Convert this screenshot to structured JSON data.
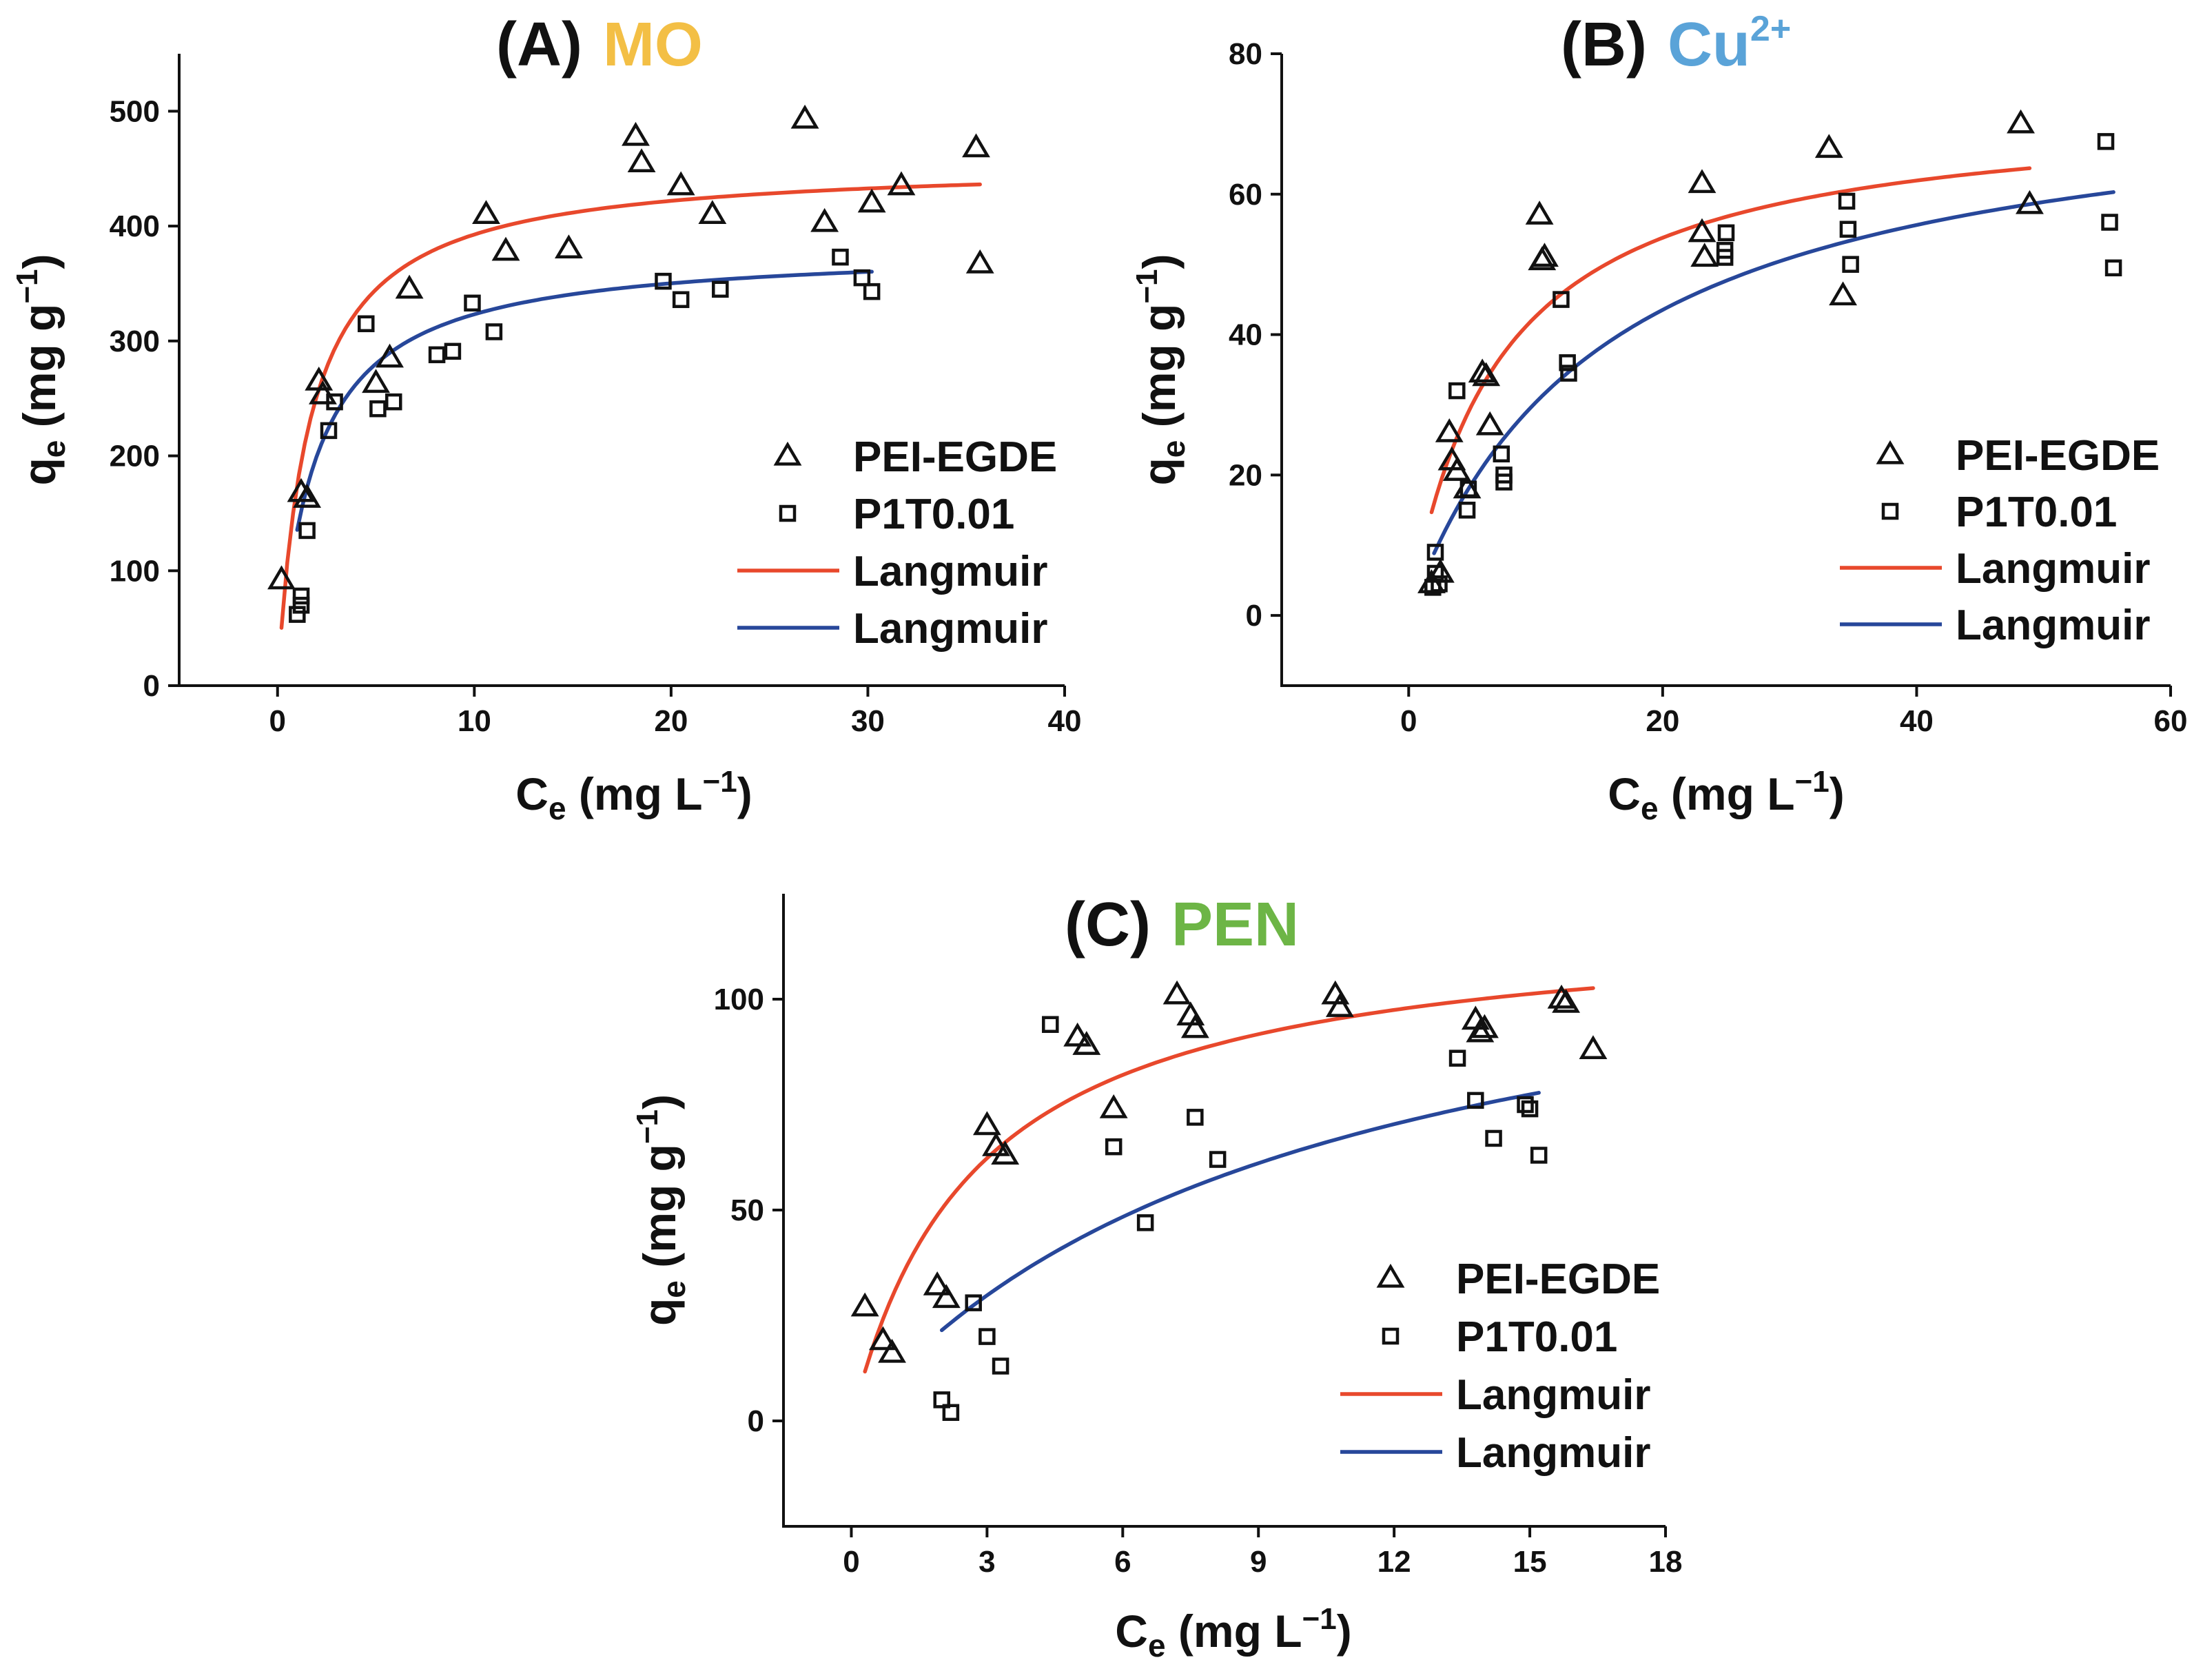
{
  "colors": {
    "axis": "#111111",
    "fit_pei": "#e8482c",
    "fit_p1t": "#27479a",
    "title_A": "#f3bf45",
    "title_B": "#5aa3d8",
    "title_C": "#6db546"
  },
  "chart_data": [
    {
      "panel": "A",
      "type": "scatter",
      "title_tag": "(A)",
      "title_species": "MO",
      "title_superscript": "",
      "xlabel": {
        "base": "C",
        "sub": "e",
        "unit": " (mg L",
        "exp": "−1",
        "close": ")"
      },
      "ylabel": {
        "base": "q",
        "sub": "e",
        "unit": " (mg g",
        "exp": "−1",
        "close": ")"
      },
      "xlim": [
        -5,
        40
      ],
      "ylim": [
        0,
        550
      ],
      "xticks": [
        0,
        10,
        20,
        30,
        40
      ],
      "yticks": [
        0,
        100,
        200,
        300,
        400,
        500
      ],
      "legend": [
        "PEI-EGDE",
        "P1T0.01",
        "Langmuir",
        "Langmuir"
      ],
      "legend_position": "center-right",
      "series": [
        {
          "name": "PEI-EGDE",
          "marker": "triangle",
          "points": [
            [
              0.2,
              92
            ],
            [
              1.2,
              168
            ],
            [
              1.5,
              163
            ],
            [
              2.1,
              265
            ],
            [
              2.3,
              253
            ],
            [
              5,
              263
            ],
            [
              5.7,
              285
            ],
            [
              6.7,
              345
            ],
            [
              10.6,
              410
            ],
            [
              11.6,
              378
            ],
            [
              14.8,
              380
            ],
            [
              18.2,
              478
            ],
            [
              18.5,
              455
            ],
            [
              20.5,
              435
            ],
            [
              22.1,
              410
            ],
            [
              26.8,
              493
            ],
            [
              27.8,
              403
            ],
            [
              30.2,
              420
            ],
            [
              31.7,
              435
            ],
            [
              35.5,
              468
            ],
            [
              35.7,
              367
            ]
          ]
        },
        {
          "name": "P1T0.01",
          "marker": "square",
          "points": [
            [
              1,
              62
            ],
            [
              1.2,
              70
            ],
            [
              1.2,
              78
            ],
            [
              1.5,
              135
            ],
            [
              2.6,
              222
            ],
            [
              2.9,
              247
            ],
            [
              4.5,
              315
            ],
            [
              5.1,
              241
            ],
            [
              5.9,
              247
            ],
            [
              8.1,
              288
            ],
            [
              8.9,
              291
            ],
            [
              9.9,
              333
            ],
            [
              11,
              308
            ],
            [
              19.6,
              352
            ],
            [
              20.5,
              336
            ],
            [
              22.5,
              345
            ],
            [
              28.6,
              373
            ],
            [
              29.7,
              355
            ],
            [
              30.2,
              343
            ]
          ]
        },
        {
          "name": "Langmuir",
          "fit": "PEI-EGDE",
          "model": "langmuir",
          "qmax": 456,
          "kl": 0.62,
          "xrange": [
            0.2,
            35.7
          ]
        },
        {
          "name": "Langmuir",
          "fit": "P1T0.01",
          "model": "langmuir",
          "qmax": 382,
          "kl": 0.55,
          "xrange": [
            1.0,
            30.2
          ]
        }
      ]
    },
    {
      "panel": "B",
      "type": "scatter",
      "title_tag": "(B)",
      "title_species": "Cu",
      "title_superscript": "2+",
      "xlabel": {
        "base": "C",
        "sub": "e",
        "unit": " (mg L",
        "exp": "−1",
        "close": ")"
      },
      "ylabel": {
        "base": "q",
        "sub": "e",
        "unit": " (mg g",
        "exp": "−1",
        "close": ")"
      },
      "xlim": [
        -10,
        60
      ],
      "ylim": [
        -10,
        80
      ],
      "xticks": [
        0,
        20,
        40,
        60
      ],
      "yticks": [
        0,
        20,
        40,
        60,
        80
      ],
      "legend": [
        "PEI-EGDE",
        "P1T0.01",
        "Langmuir",
        "Langmuir"
      ],
      "legend_position": "lower-right",
      "series": [
        {
          "name": "PEI-EGDE",
          "marker": "triangle",
          "points": [
            [
              1.8,
              4.5
            ],
            [
              2.5,
              6
            ],
            [
              3.2,
              26
            ],
            [
              3.4,
              22
            ],
            [
              3.8,
              20.5
            ],
            [
              4.6,
              18
            ],
            [
              5.8,
              34.5
            ],
            [
              6.1,
              34
            ],
            [
              6.4,
              27
            ],
            [
              10.3,
              57
            ],
            [
              10.5,
              50.5
            ],
            [
              10.7,
              51
            ],
            [
              23.1,
              61.5
            ],
            [
              23.1,
              54.5
            ],
            [
              23.3,
              51
            ],
            [
              33.1,
              66.5
            ],
            [
              34.2,
              45.5
            ],
            [
              48.2,
              70
            ],
            [
              48.9,
              58.5
            ]
          ]
        },
        {
          "name": "P1T0.01",
          "marker": "square",
          "points": [
            [
              1.9,
              4
            ],
            [
              2.1,
              6
            ],
            [
              2.1,
              9
            ],
            [
              2.4,
              4.5
            ],
            [
              3.8,
              32
            ],
            [
              4.6,
              15
            ],
            [
              4.7,
              18
            ],
            [
              7.3,
              23
            ],
            [
              7.5,
              19
            ],
            [
              7.5,
              20
            ],
            [
              12,
              45
            ],
            [
              12.5,
              36
            ],
            [
              12.6,
              34.5
            ],
            [
              24.9,
              51
            ],
            [
              24.9,
              52
            ],
            [
              25,
              54.5
            ],
            [
              34.5,
              59
            ],
            [
              34.6,
              55
            ],
            [
              34.8,
              50
            ],
            [
              54.9,
              67.5
            ],
            [
              55.2,
              56
            ],
            [
              55.5,
              49.5
            ]
          ]
        },
        {
          "name": "Langmuir",
          "fit": "PEI-EGDE",
          "model": "langmuir",
          "qmax": 73,
          "kl": 0.14,
          "xrange": [
            1.8,
            48.9
          ]
        },
        {
          "name": "Langmuir",
          "fit": "P1T0.01",
          "model": "langmuir",
          "qmax": 77,
          "kl": 0.065,
          "xrange": [
            2.0,
            55.5
          ]
        }
      ]
    },
    {
      "panel": "C",
      "type": "scatter",
      "title_tag": "(C)",
      "title_species": "PEN",
      "title_superscript": "",
      "xlabel": {
        "base": "C",
        "sub": "e",
        "unit": " (mg L",
        "exp": "−1",
        "close": ")"
      },
      "ylabel": {
        "base": "q",
        "sub": "e",
        "unit": " (mg g",
        "exp": "−1",
        "close": ")"
      },
      "xlim": [
        -1.5,
        18
      ],
      "ylim": [
        -25,
        125
      ],
      "xticks": [
        0,
        3,
        6,
        9,
        12,
        15,
        18
      ],
      "yticks": [
        0,
        50,
        100
      ],
      "legend": [
        "PEI-EGDE",
        "P1T0.01",
        "Langmuir",
        "Langmuir"
      ],
      "legend_position": "lower-right",
      "series": [
        {
          "name": "PEI-EGDE",
          "marker": "triangle",
          "points": [
            [
              0.3,
              27
            ],
            [
              0.7,
              19
            ],
            [
              0.9,
              16
            ],
            [
              1.9,
              32
            ],
            [
              2.1,
              29
            ],
            [
              3,
              70
            ],
            [
              3.2,
              65
            ],
            [
              3.4,
              63
            ],
            [
              5,
              91
            ],
            [
              5.2,
              89
            ],
            [
              5.8,
              74
            ],
            [
              7.2,
              101
            ],
            [
              7.5,
              96
            ],
            [
              7.6,
              93
            ],
            [
              10.7,
              101
            ],
            [
              10.8,
              98
            ],
            [
              13.8,
              95
            ],
            [
              13.9,
              92
            ],
            [
              14,
              93
            ],
            [
              15.7,
              100
            ],
            [
              15.8,
              99
            ],
            [
              16.4,
              88
            ]
          ]
        },
        {
          "name": "P1T0.01",
          "marker": "square",
          "points": [
            [
              2,
              5
            ],
            [
              2.2,
              2
            ],
            [
              2.7,
              28
            ],
            [
              3.0,
              20
            ],
            [
              3.3,
              13
            ],
            [
              4.4,
              94
            ],
            [
              5.8,
              65
            ],
            [
              6.5,
              47
            ],
            [
              7.6,
              72
            ],
            [
              8.1,
              62
            ],
            [
              13.4,
              86
            ],
            [
              13.8,
              76
            ],
            [
              14.2,
              67
            ],
            [
              14.9,
              75
            ],
            [
              15,
              74
            ],
            [
              15.2,
              63
            ]
          ]
        },
        {
          "name": "Langmuir",
          "fit": "PEI-EGDE",
          "model": "langmuir",
          "qmax": 120,
          "kl": 0.36,
          "xrange": [
            0.3,
            16.4
          ]
        },
        {
          "name": "Langmuir",
          "fit": "P1T0.01",
          "model": "langmuir",
          "qmax": 129,
          "kl": 0.1,
          "xrange": [
            2.0,
            15.2
          ]
        }
      ]
    }
  ]
}
